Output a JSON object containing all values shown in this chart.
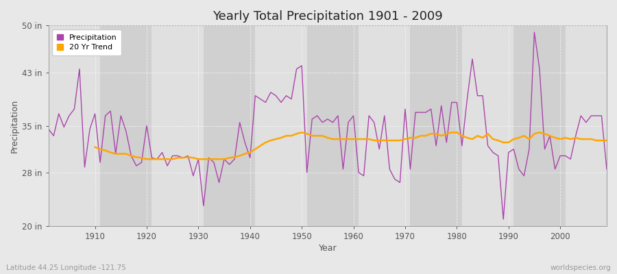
{
  "title": "Yearly Total Precipitation 1901 - 2009",
  "xlabel": "Year",
  "ylabel": "Precipitation",
  "subtitle": "Latitude 44.25 Longitude -121.75",
  "watermark": "worldspecies.org",
  "legend_labels": [
    "Precipitation",
    "20 Yr Trend"
  ],
  "precip_color": "#AA44AA",
  "trend_color": "#FFA500",
  "bg_color": "#E8E8E8",
  "plot_bg_color": "#DCDCDC",
  "band_light": "#E0E0E0",
  "band_dark": "#D0D0D0",
  "ylim": [
    20,
    50
  ],
  "yticks": [
    20,
    28,
    35,
    43,
    50
  ],
  "ytick_labels": [
    "20 in",
    "28 in",
    "35 in",
    "43 in",
    "50 in"
  ],
  "xlim": [
    1901,
    2009
  ],
  "xticks": [
    1910,
    1920,
    1930,
    1940,
    1950,
    1960,
    1970,
    1980,
    1990,
    2000
  ],
  "years": [
    1901,
    1902,
    1903,
    1904,
    1905,
    1906,
    1907,
    1908,
    1909,
    1910,
    1911,
    1912,
    1913,
    1914,
    1915,
    1916,
    1917,
    1918,
    1919,
    1920,
    1921,
    1922,
    1923,
    1924,
    1925,
    1926,
    1927,
    1928,
    1929,
    1930,
    1931,
    1932,
    1933,
    1934,
    1935,
    1936,
    1937,
    1938,
    1939,
    1940,
    1941,
    1942,
    1943,
    1944,
    1945,
    1946,
    1947,
    1948,
    1949,
    1950,
    1951,
    1952,
    1953,
    1954,
    1955,
    1956,
    1957,
    1958,
    1959,
    1960,
    1961,
    1962,
    1963,
    1964,
    1965,
    1966,
    1967,
    1968,
    1969,
    1970,
    1971,
    1972,
    1973,
    1974,
    1975,
    1976,
    1977,
    1978,
    1979,
    1980,
    1981,
    1982,
    1983,
    1984,
    1985,
    1986,
    1987,
    1988,
    1989,
    1990,
    1991,
    1992,
    1993,
    1994,
    1995,
    1996,
    1997,
    1998,
    1999,
    2000,
    2001,
    2002,
    2003,
    2004,
    2005,
    2006,
    2007,
    2008,
    2009
  ],
  "precip": [
    34.5,
    33.5,
    36.8,
    34.8,
    36.5,
    37.5,
    43.5,
    28.8,
    34.5,
    36.8,
    29.5,
    36.5,
    37.2,
    30.8,
    36.5,
    34.2,
    30.5,
    29.0,
    29.5,
    35.0,
    30.2,
    30.0,
    31.0,
    29.0,
    30.5,
    30.5,
    30.2,
    30.5,
    27.5,
    30.0,
    23.0,
    30.2,
    29.5,
    26.5,
    30.0,
    29.2,
    30.0,
    35.5,
    32.5,
    30.2,
    39.5,
    39.0,
    38.5,
    40.0,
    39.5,
    38.5,
    39.5,
    39.0,
    43.5,
    44.0,
    28.0,
    36.0,
    36.5,
    35.5,
    36.0,
    35.5,
    36.5,
    28.5,
    35.5,
    36.5,
    28.0,
    27.5,
    36.5,
    35.5,
    31.5,
    36.5,
    28.5,
    27.0,
    26.5,
    37.5,
    28.5,
    37.0,
    37.0,
    37.0,
    37.5,
    32.0,
    38.0,
    32.5,
    38.5,
    38.5,
    32.0,
    39.0,
    45.0,
    39.5,
    39.5,
    32.0,
    31.0,
    30.5,
    21.0,
    31.0,
    31.5,
    28.5,
    27.5,
    31.5,
    49.0,
    43.5,
    31.5,
    33.5,
    28.5,
    30.5,
    30.5,
    30.0,
    33.5,
    36.5,
    35.5,
    36.5,
    36.5,
    36.5,
    28.5
  ],
  "trend": [
    null,
    null,
    null,
    null,
    null,
    null,
    null,
    null,
    null,
    31.8,
    31.5,
    31.3,
    31.0,
    30.8,
    30.8,
    30.8,
    30.5,
    30.3,
    30.2,
    30.0,
    30.0,
    30.0,
    30.0,
    30.0,
    30.0,
    30.2,
    30.2,
    30.3,
    30.2,
    30.0,
    30.0,
    30.0,
    30.0,
    30.0,
    30.0,
    30.2,
    30.3,
    30.5,
    30.8,
    31.0,
    31.5,
    32.0,
    32.5,
    32.8,
    33.0,
    33.2,
    33.5,
    33.5,
    33.8,
    34.0,
    33.8,
    33.5,
    33.5,
    33.5,
    33.2,
    33.0,
    33.0,
    33.0,
    33.0,
    33.0,
    33.0,
    33.0,
    33.0,
    32.8,
    32.8,
    32.8,
    32.8,
    32.8,
    32.8,
    33.0,
    33.2,
    33.2,
    33.5,
    33.5,
    33.8,
    33.8,
    33.5,
    33.8,
    34.0,
    34.0,
    33.5,
    33.2,
    33.0,
    33.5,
    33.2,
    33.8,
    33.0,
    32.8,
    32.5,
    32.5,
    33.0,
    33.2,
    33.5,
    33.0,
    33.8,
    34.0,
    33.8,
    33.5,
    33.2,
    33.0,
    33.2,
    33.0,
    33.2,
    33.0,
    33.0,
    33.0,
    32.8,
    32.8,
    32.8
  ]
}
